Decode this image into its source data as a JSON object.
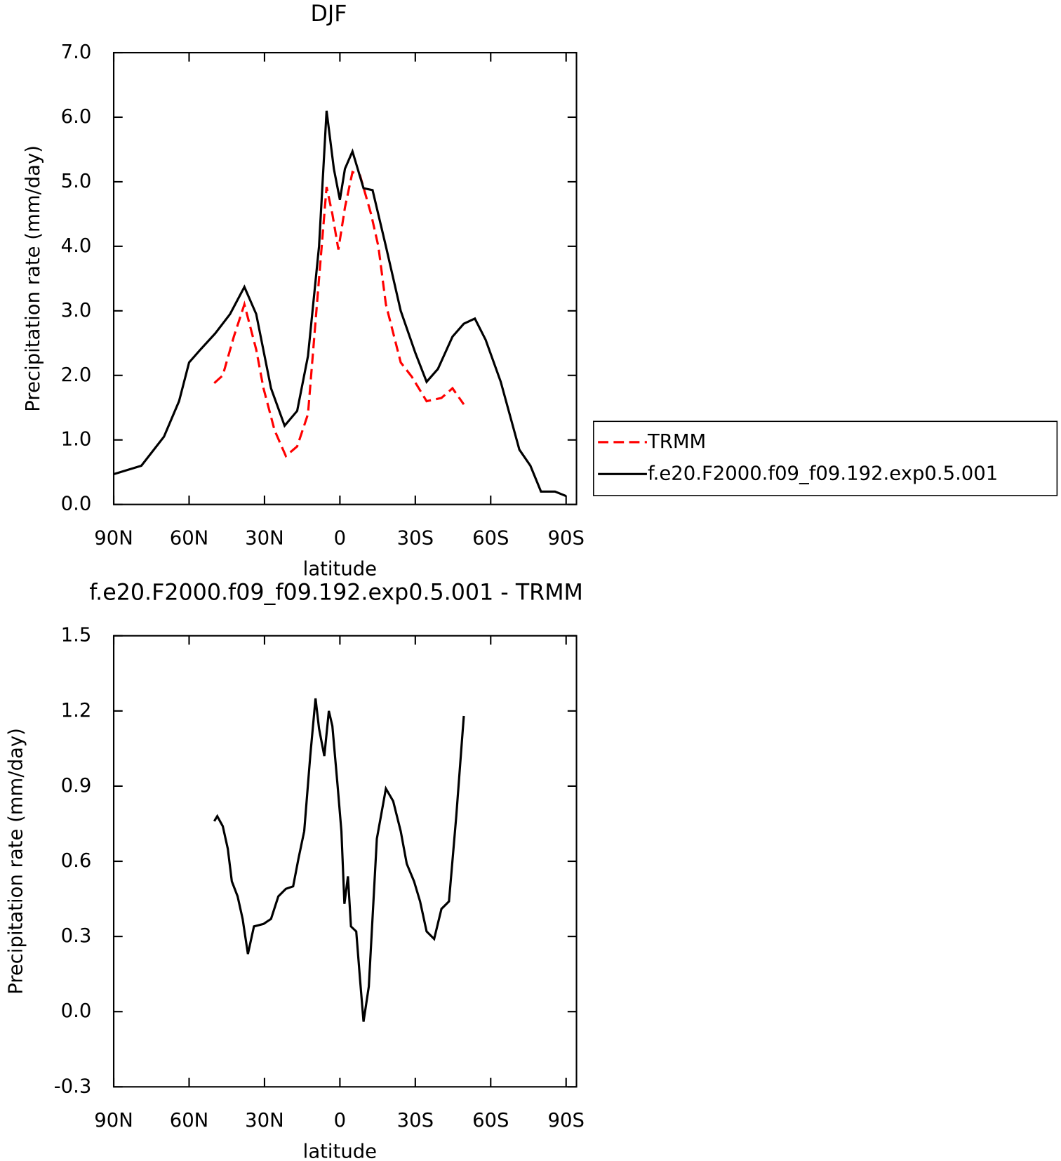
{
  "chart_data": [
    {
      "type": "line",
      "title": "DJF",
      "xlabel": "latitude",
      "ylabel": "Precipitation rate (mm/day)",
      "xlim": [
        90,
        -90
      ],
      "xticks": [
        {
          "value": 90,
          "label": "90N"
        },
        {
          "value": 60,
          "label": "60N"
        },
        {
          "value": 30,
          "label": "30N"
        },
        0,
        {
          "value": -30,
          "label": "30S"
        },
        {
          "value": -60,
          "label": "60S"
        },
        {
          "value": -90,
          "label": "90S"
        }
      ],
      "ylim": [
        0,
        7
      ],
      "yticks": [
        {
          "value": 0,
          "label": "0.0"
        },
        {
          "value": 1,
          "label": "1.0"
        },
        {
          "value": 2,
          "label": "2.0"
        },
        {
          "value": 3,
          "label": "3.0"
        },
        {
          "value": 4,
          "label": "4.0"
        },
        {
          "value": 5,
          "label": "5.0"
        },
        {
          "value": 6,
          "label": "6.0"
        },
        {
          "value": 7,
          "label": "7.0"
        }
      ],
      "series": [
        {
          "name": "TRMM",
          "color": "#ff0000",
          "linestyle": "dashed",
          "x": [
            50,
            46.6,
            42.2,
            38,
            33.3,
            30.4,
            26,
            21.5,
            17,
            12.7,
            8.3,
            5.3,
            3,
            0.6,
            -2,
            -5,
            -8,
            -12.4,
            -15.3,
            -18.3,
            -24.2,
            -28.6,
            -34.5,
            -40.4,
            -44.8,
            -49.3
          ],
          "values": [
            1.88,
            2.0,
            2.6,
            3.1,
            2.4,
            1.8,
            1.15,
            0.75,
            0.9,
            1.4,
            3.5,
            4.92,
            4.5,
            3.95,
            4.6,
            5.15,
            5.1,
            4.5,
            4.0,
            3.1,
            2.2,
            1.98,
            1.6,
            1.65,
            1.8,
            1.55
          ]
        },
        {
          "name": "f.e20.F2000.f09_f09.192.exp0.5.001",
          "color": "#000000",
          "linestyle": "solid",
          "x": [
            90,
            79,
            70,
            64,
            60,
            55.5,
            49.6,
            43.7,
            38,
            33.3,
            27.4,
            22,
            17,
            12.7,
            8.3,
            5.3,
            2.4,
            0,
            -2,
            -5,
            -9.4,
            -13,
            -18.3,
            -24.2,
            -30,
            -34.5,
            -39,
            -44.8,
            -49.3,
            -53.7,
            -58,
            -64,
            -71.4,
            -75.8,
            -80,
            -85.6,
            -90
          ],
          "values": [
            0.47,
            0.6,
            1.05,
            1.6,
            2.2,
            2.4,
            2.65,
            2.95,
            3.37,
            2.95,
            1.8,
            1.22,
            1.45,
            2.3,
            4.0,
            6.1,
            5.2,
            4.72,
            5.2,
            5.47,
            4.9,
            4.87,
            4.0,
            3.0,
            2.35,
            1.9,
            2.1,
            2.6,
            2.8,
            2.88,
            2.55,
            1.9,
            0.85,
            0.6,
            0.2,
            0.2,
            0.13
          ]
        }
      ]
    },
    {
      "type": "line",
      "title": "f.e20.F2000.f09_f09.192.exp0.5.001 - TRMM",
      "xlabel": "latitude",
      "ylabel": "Precipitation rate (mm/day)",
      "xlim": [
        90,
        -90
      ],
      "xticks": [
        {
          "value": 90,
          "label": "90N"
        },
        {
          "value": 60,
          "label": "60N"
        },
        {
          "value": 30,
          "label": "30N"
        },
        0,
        {
          "value": -30,
          "label": "30S"
        },
        {
          "value": -60,
          "label": "60S"
        },
        {
          "value": -90,
          "label": "90S"
        }
      ],
      "ylim": [
        -0.3,
        1.5
      ],
      "yticks": [
        -0.3,
        {
          "value": 0,
          "label": "0.0"
        },
        0.3,
        0.6,
        0.9,
        1.2,
        1.5
      ],
      "series": [
        {
          "color": "#000000",
          "linestyle": "solid",
          "x": [
            50,
            48.8,
            46.6,
            44.6,
            43,
            40.7,
            38.7,
            36.6,
            34.2,
            30.4,
            27.4,
            24.5,
            21.5,
            18.6,
            16.5,
            14.2,
            11.8,
            9.7,
            8.3,
            6.2,
            4.4,
            3,
            0.9,
            -0.6,
            -1.8,
            -3.2,
            -4.4,
            -6.5,
            -8,
            -9.4,
            -11.5,
            -14.7,
            -18.3,
            -21.2,
            -24.2,
            -26.6,
            -29.5,
            -31.9,
            -34.5,
            -37.5,
            -40.4,
            -43.4,
            -46.3,
            -49.3
          ],
          "values": [
            0.76,
            0.78,
            0.74,
            0.65,
            0.52,
            0.46,
            0.37,
            0.23,
            0.34,
            0.35,
            0.37,
            0.46,
            0.49,
            0.5,
            0.61,
            0.72,
            1.02,
            1.25,
            1.13,
            1.02,
            1.2,
            1.14,
            0.9,
            0.72,
            0.43,
            0.54,
            0.34,
            0.32,
            0.13,
            -0.04,
            0.1,
            0.69,
            0.89,
            0.84,
            0.72,
            0.59,
            0.52,
            0.44,
            0.32,
            0.29,
            0.41,
            0.44,
            0.78,
            1.18
          ]
        }
      ]
    }
  ]
}
